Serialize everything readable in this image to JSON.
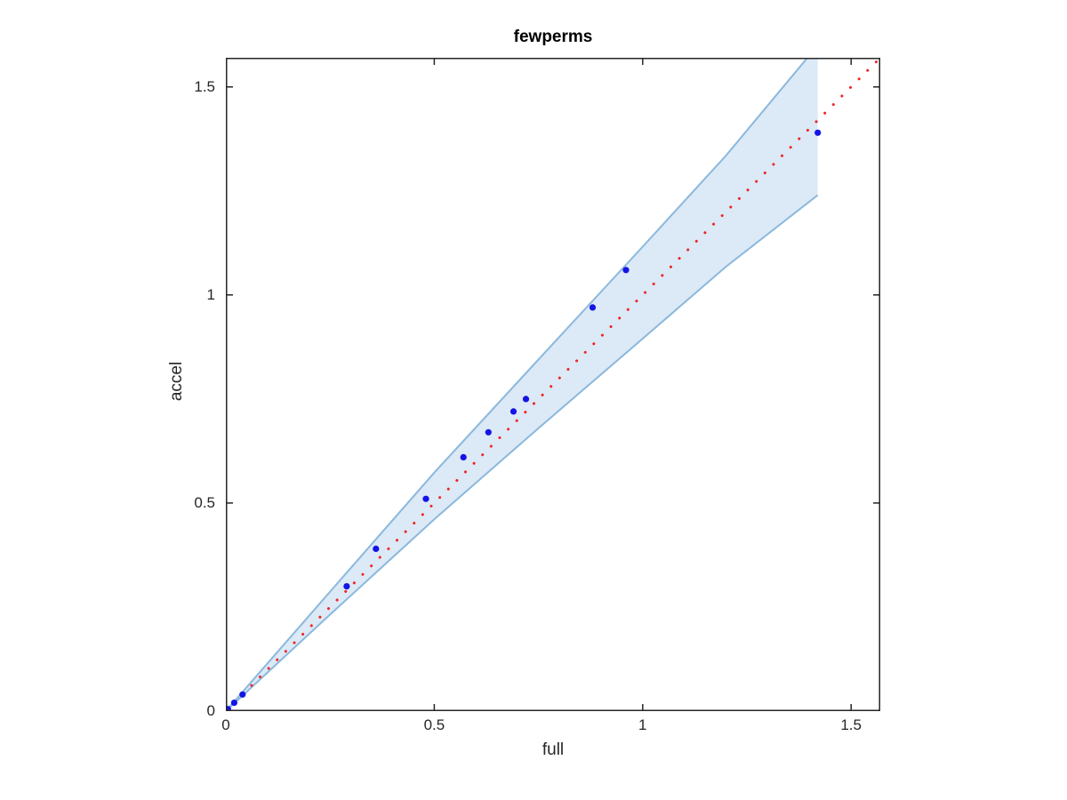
{
  "chart_data": {
    "type": "scatter",
    "title": "fewperms",
    "xlabel": "full",
    "ylabel": "accel",
    "xlim": [
      0,
      1.57
    ],
    "ylim": [
      0,
      1.57
    ],
    "grid": false,
    "legend": null,
    "axis_color": "#262626",
    "xticks": {
      "values": [
        0,
        0.5,
        1,
        1.5
      ],
      "labels": [
        "0",
        "0.5",
        "1",
        "1.5"
      ]
    },
    "yticks": {
      "values": [
        0,
        0.5,
        1,
        1.5
      ],
      "labels": [
        "0",
        "0.5",
        "1",
        "1.5"
      ]
    },
    "series": [
      {
        "name": "confidence-band",
        "type": "band",
        "fill_color": "#dce9f6",
        "edge_color": "#8ab8dc",
        "upper": [
          [
            0,
            0
          ],
          [
            0.25,
            0.287
          ],
          [
            0.5,
            0.573
          ],
          [
            0.75,
            0.845
          ],
          [
            1.0,
            1.116
          ],
          [
            1.2,
            1.335
          ],
          [
            1.42,
            1.6
          ]
        ],
        "lower": [
          [
            0,
            0
          ],
          [
            0.25,
            0.232
          ],
          [
            0.5,
            0.461
          ],
          [
            0.75,
            0.68
          ],
          [
            1.0,
            0.895
          ],
          [
            1.2,
            1.068
          ],
          [
            1.42,
            1.24
          ]
        ]
      },
      {
        "name": "identity-line",
        "type": "line",
        "style": "dotted",
        "color": "#ee2525",
        "points": [
          [
            0,
            0
          ],
          [
            1.57,
            1.57
          ]
        ]
      },
      {
        "name": "observations",
        "type": "scatter",
        "marker": "dot",
        "color": "#1414e6",
        "points": [
          [
            0.005,
            0.005
          ],
          [
            0.02,
            0.02
          ],
          [
            0.04,
            0.04
          ],
          [
            0.29,
            0.3
          ],
          [
            0.36,
            0.39
          ],
          [
            0.48,
            0.51
          ],
          [
            0.57,
            0.61
          ],
          [
            0.63,
            0.67
          ],
          [
            0.69,
            0.72
          ],
          [
            0.72,
            0.75
          ],
          [
            0.88,
            0.97
          ],
          [
            0.96,
            1.06
          ],
          [
            1.42,
            1.39
          ]
        ]
      }
    ]
  }
}
